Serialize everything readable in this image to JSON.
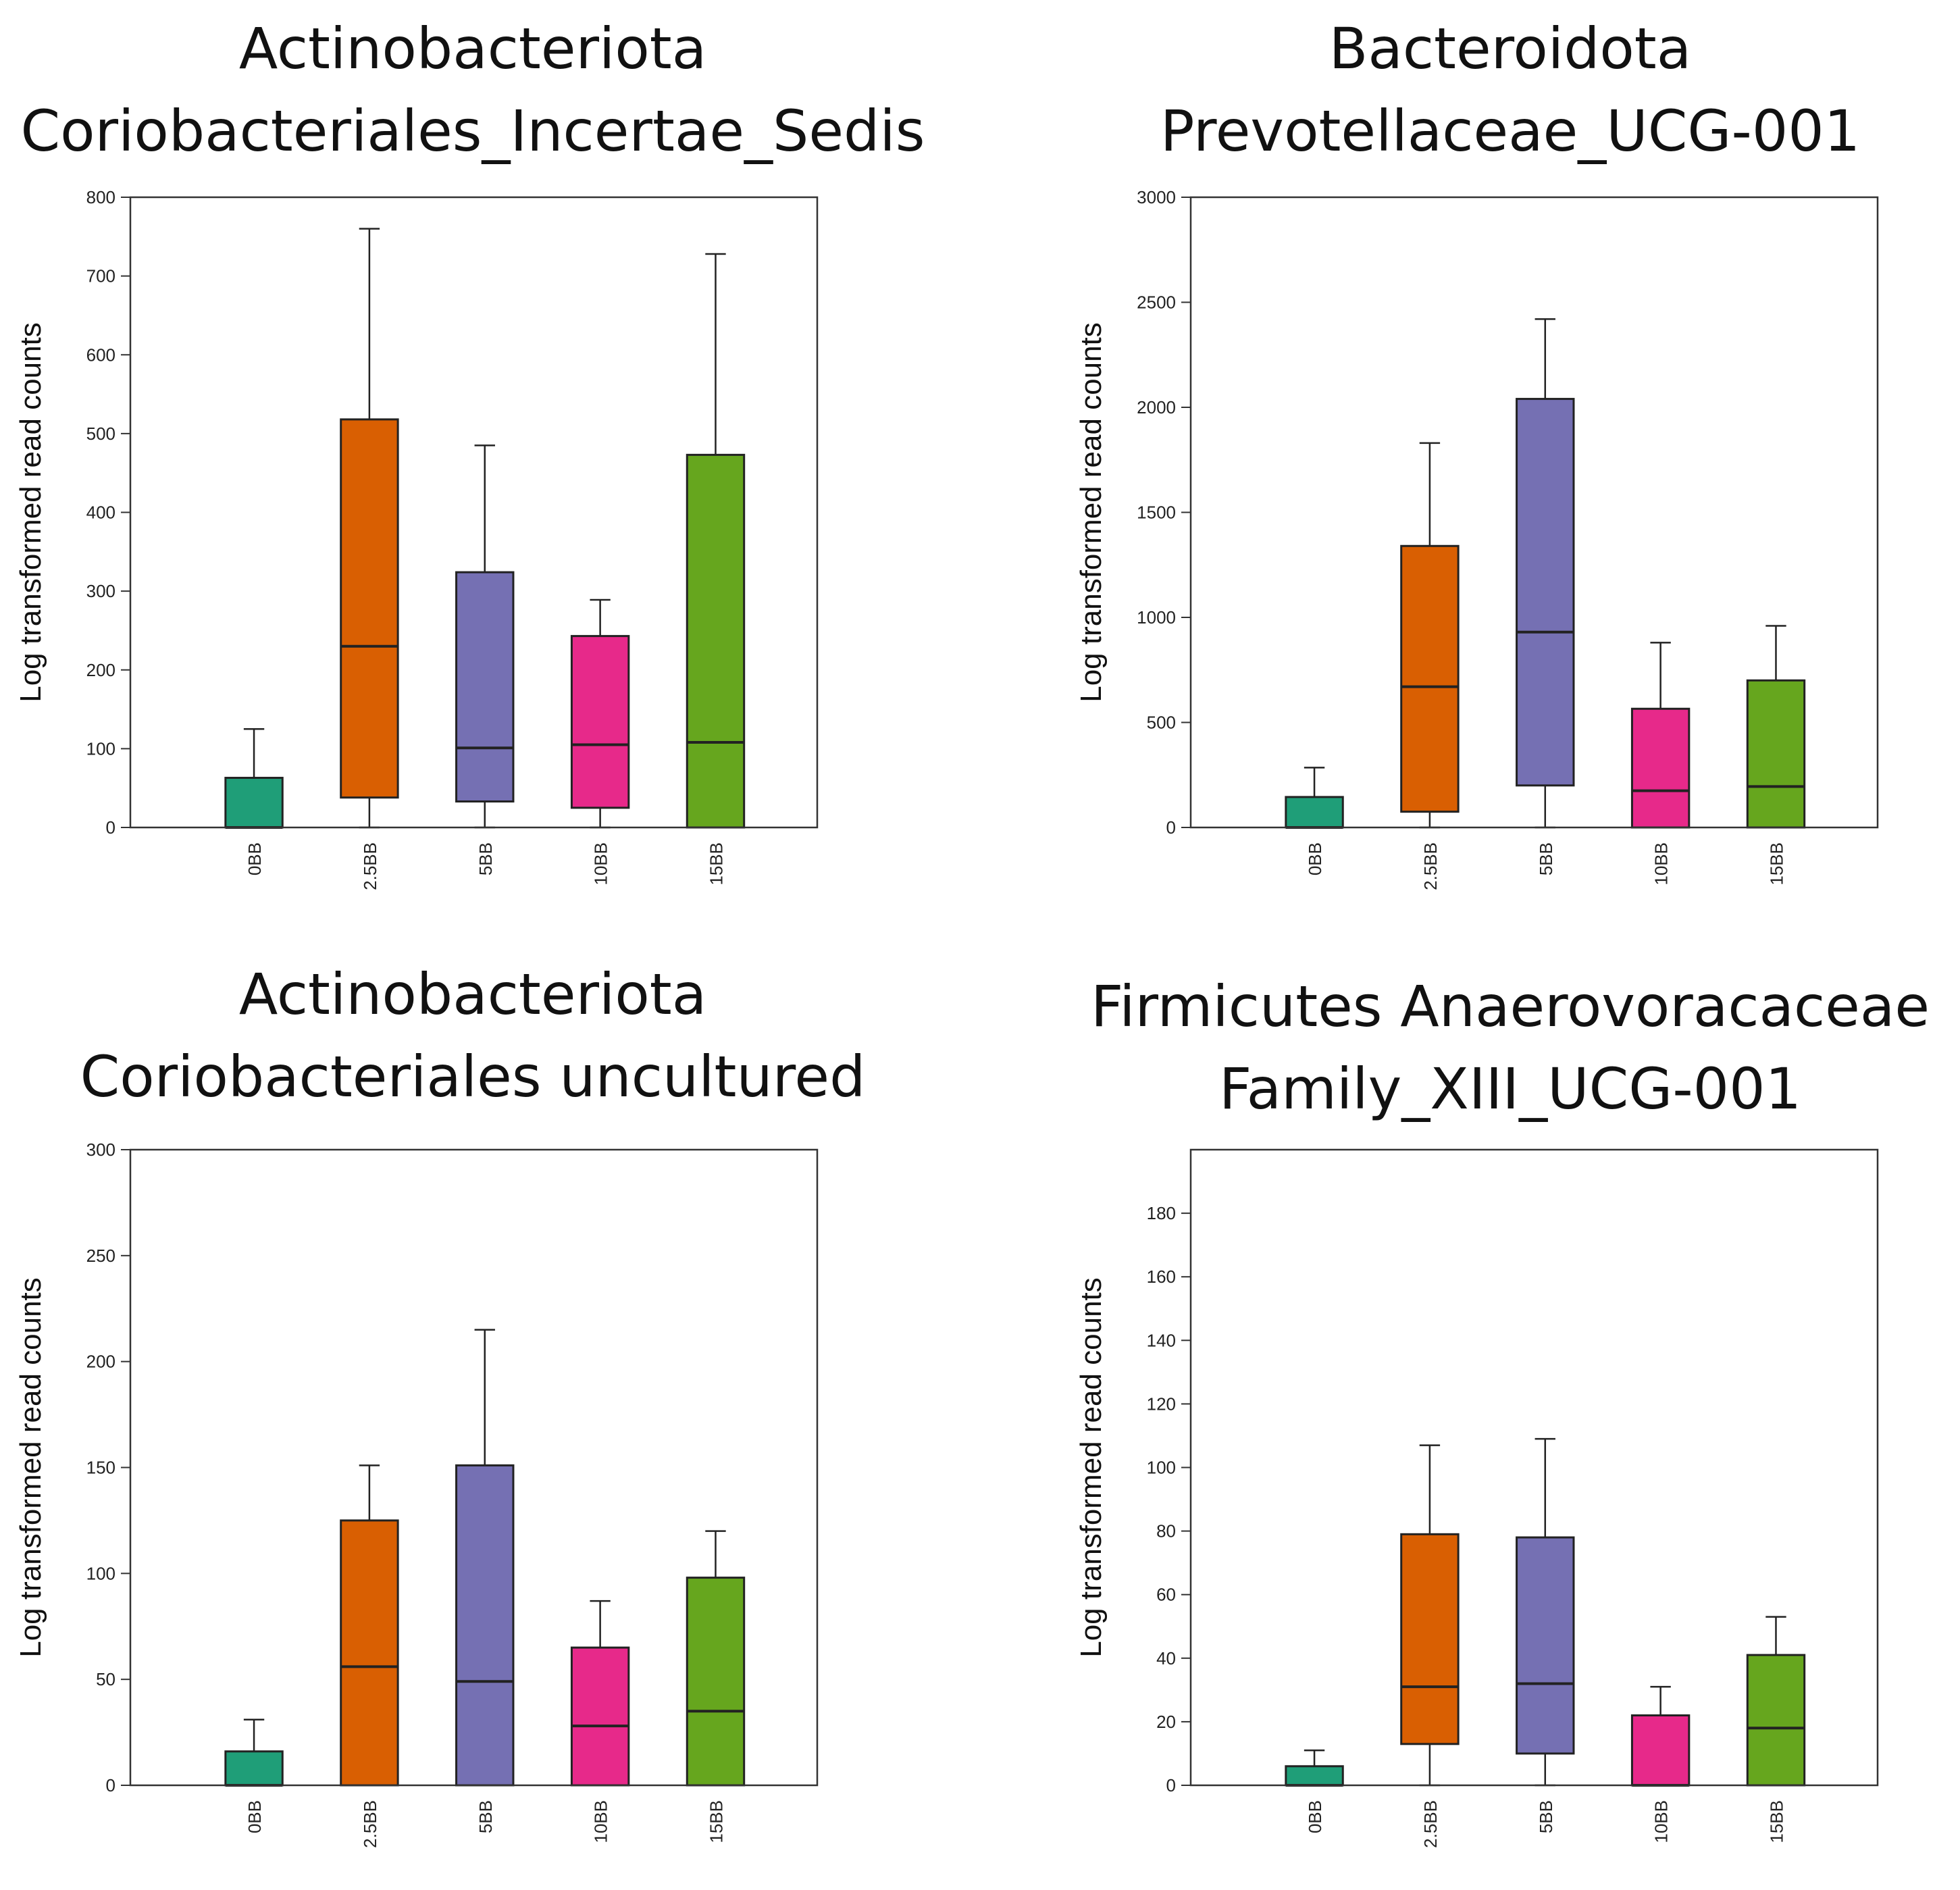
{
  "colors": {
    "0BB": "#1f9e78",
    "2.5BB": "#d95f02",
    "5BB": "#7570b3",
    "10BB": "#e7298a",
    "15BB": "#66a61e",
    "stroke": "#222222",
    "axis": "#333333"
  },
  "chart_data": [
    {
      "type": "boxplot",
      "title_lines": [
        "Actinobacteriota",
        "Coriobacteriales_Incertae_Sedis"
      ],
      "ylabel": "Log transformed read counts",
      "ylim": [
        0,
        800
      ],
      "yticks": [
        0,
        100,
        200,
        300,
        400,
        500,
        600,
        700,
        800
      ],
      "categories": [
        "0BB",
        "2.5BB",
        "5BB",
        "10BB",
        "15BB"
      ],
      "boxes": [
        {
          "whisker_low": 0,
          "q1": 0,
          "median": 0,
          "q3": 63,
          "whisker_high": 125
        },
        {
          "whisker_low": 0,
          "q1": 38,
          "median": 230,
          "q3": 518,
          "whisker_high": 760
        },
        {
          "whisker_low": 0,
          "q1": 33,
          "median": 101,
          "q3": 324,
          "whisker_high": 485
        },
        {
          "whisker_low": 0,
          "q1": 25,
          "median": 105,
          "q3": 243,
          "whisker_high": 289
        },
        {
          "whisker_low": 0,
          "q1": 0,
          "median": 108,
          "q3": 473,
          "whisker_high": 728
        }
      ]
    },
    {
      "type": "boxplot",
      "title_lines": [
        "Bacteroidota",
        "Prevotellaceae_UCG-001"
      ],
      "ylabel": "Log transformed read counts",
      "ylim": [
        0,
        3000
      ],
      "yticks": [
        0,
        500,
        1000,
        1500,
        2000,
        2500,
        3000
      ],
      "categories": [
        "0BB",
        "2.5BB",
        "5BB",
        "10BB",
        "15BB"
      ],
      "boxes": [
        {
          "whisker_low": 0,
          "q1": 0,
          "median": 0,
          "q3": 145,
          "whisker_high": 285
        },
        {
          "whisker_low": 0,
          "q1": 75,
          "median": 670,
          "q3": 1340,
          "whisker_high": 1830
        },
        {
          "whisker_low": 0,
          "q1": 200,
          "median": 930,
          "q3": 2040,
          "whisker_high": 2420
        },
        {
          "whisker_low": 0,
          "q1": 0,
          "median": 175,
          "q3": 565,
          "whisker_high": 880
        },
        {
          "whisker_low": 0,
          "q1": 0,
          "median": 195,
          "q3": 700,
          "whisker_high": 960
        }
      ]
    },
    {
      "type": "boxplot",
      "title_lines": [
        "Actinobacteriota",
        "Coriobacteriales uncultured"
      ],
      "ylabel": "Log transformed read counts",
      "ylim": [
        0,
        300
      ],
      "yticks": [
        0,
        50,
        100,
        150,
        200,
        250,
        300
      ],
      "categories": [
        "0BB",
        "2.5BB",
        "5BB",
        "10BB",
        "15BB"
      ],
      "boxes": [
        {
          "whisker_low": 0,
          "q1": 0,
          "median": 0,
          "q3": 16,
          "whisker_high": 31
        },
        {
          "whisker_low": 0,
          "q1": 0,
          "median": 56,
          "q3": 125,
          "whisker_high": 151
        },
        {
          "whisker_low": 0,
          "q1": 0,
          "median": 49,
          "q3": 151,
          "whisker_high": 215
        },
        {
          "whisker_low": 0,
          "q1": 0,
          "median": 28,
          "q3": 65,
          "whisker_high": 87
        },
        {
          "whisker_low": 0,
          "q1": 0,
          "median": 35,
          "q3": 98,
          "whisker_high": 120
        }
      ]
    },
    {
      "type": "boxplot",
      "title_lines": [
        "Firmicutes Anaerovoracaceae",
        "Family_XIII_UCG-001"
      ],
      "ylabel": "Log transformed read counts",
      "ylim": [
        0,
        200
      ],
      "yticks": [
        0,
        20,
        40,
        60,
        80,
        100,
        120,
        140,
        160,
        180
      ],
      "categories": [
        "0BB",
        "2.5BB",
        "5BB",
        "10BB",
        "15BB"
      ],
      "boxes": [
        {
          "whisker_low": 0,
          "q1": 0,
          "median": 0,
          "q3": 6,
          "whisker_high": 11
        },
        {
          "whisker_low": 0,
          "q1": 13,
          "median": 31,
          "q3": 79,
          "whisker_high": 107
        },
        {
          "whisker_low": 0,
          "q1": 10,
          "median": 32,
          "q3": 78,
          "whisker_high": 109
        },
        {
          "whisker_low": 0,
          "q1": 0,
          "median": 0,
          "q3": 22,
          "whisker_high": 31
        },
        {
          "whisker_low": 0,
          "q1": 0,
          "median": 18,
          "q3": 41,
          "whisker_high": 53
        }
      ]
    }
  ]
}
